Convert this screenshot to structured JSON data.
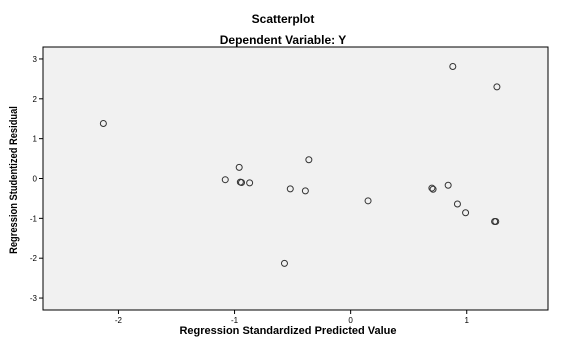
{
  "chart_data": {
    "type": "scatter",
    "title": "Scatterplot",
    "subtitle": "Dependent Variable: Y",
    "xlabel": "Regression Standardized Predicted Value",
    "ylabel": "Regression Studentized Residual",
    "xlim": [
      -2.65,
      1.7
    ],
    "ylim": [
      -3.3,
      3.3
    ],
    "xticks": [
      -2,
      -1,
      0,
      1
    ],
    "yticks": [
      3,
      2,
      1,
      0,
      -1,
      -2,
      -3
    ],
    "grid": false,
    "plot_background": "#f1f1f1",
    "marker_color": "#333333",
    "points": [
      {
        "x": -2.13,
        "y": 1.38
      },
      {
        "x": -1.08,
        "y": -0.03
      },
      {
        "x": -0.96,
        "y": 0.28
      },
      {
        "x": -0.95,
        "y": -0.09
      },
      {
        "x": -0.94,
        "y": -0.1
      },
      {
        "x": -0.87,
        "y": -0.11
      },
      {
        "x": -0.57,
        "y": -2.13
      },
      {
        "x": -0.52,
        "y": -0.26
      },
      {
        "x": -0.39,
        "y": -0.31
      },
      {
        "x": -0.36,
        "y": 0.47
      },
      {
        "x": 0.15,
        "y": -0.56
      },
      {
        "x": 0.7,
        "y": -0.24
      },
      {
        "x": 0.71,
        "y": -0.27
      },
      {
        "x": 0.84,
        "y": -0.17
      },
      {
        "x": 0.88,
        "y": 2.81
      },
      {
        "x": 0.92,
        "y": -0.64
      },
      {
        "x": 0.99,
        "y": -0.86
      },
      {
        "x": 1.24,
        "y": -1.08
      },
      {
        "x": 1.25,
        "y": -1.08
      },
      {
        "x": 1.26,
        "y": 2.3
      }
    ]
  }
}
